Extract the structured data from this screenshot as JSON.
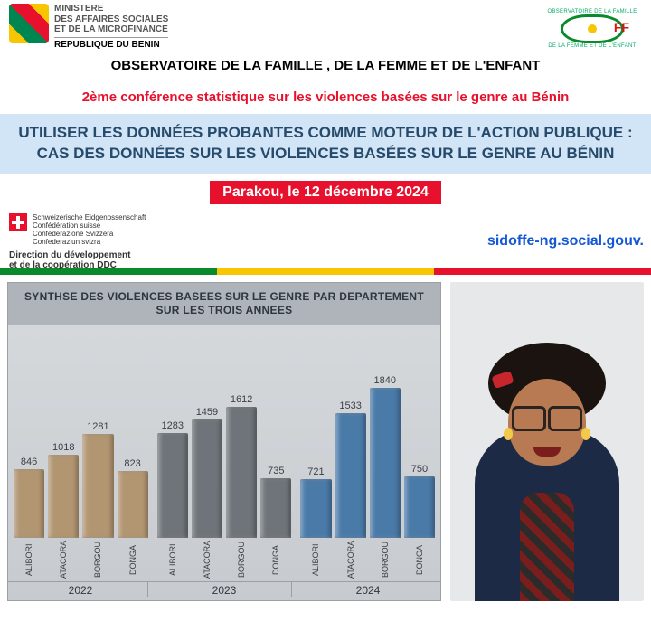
{
  "ministry": {
    "line1": "MINISTERE",
    "line2": "DES AFFAIRES SOCIALES",
    "line3": "ET DE LA MICROFINANCE",
    "republic": "REPUBLIQUE DU BENIN"
  },
  "observatory_arc_top": "OBSERVATOIRE DE LA FAMILLE",
  "observatory_arc_bot": "DE LA FEMME ET DE L'ENFANT",
  "ff_mark": "FF",
  "title_main": "OBSERVATOIRE DE LA FAMILLE , DE LA FEMME ET DE L'ENFANT",
  "subtitle_red": "2ème conférence statistique sur les violences basées sur le genre au Bénin",
  "bluebox_text": "UTILISER LES DONNÉES PROBANTES COMME MOTEUR DE L'ACTION PUBLIQUE : CAS DES DONNÉES SUR LES VIOLENCES BASÉES SUR LE GENRE AU BÉNIN",
  "event_place_date": "Parakou, le 12 décembre 2024",
  "swiss": {
    "l1": "Schweizerische Eidgenossenschaft",
    "l2": "Confédération suisse",
    "l3": "Confederazione Svizzera",
    "l4": "Confederaziun svizra",
    "ddc1": "Direction du développement",
    "ddc2": "et de la coopération DDC"
  },
  "website": "sidoffe-ng.social.gouv.",
  "flag_stripe": {
    "green": "#0a8a2a",
    "yellow": "#f7c600",
    "red": "#e8112d"
  },
  "chart": {
    "title": "SYNTHSE DES VIOLENCES BASEES SUR LE GENRE PAR DEPARTEMENT SUR LES TROIS ANNEES",
    "type": "grouped-bar-3d",
    "y_max": 2000,
    "background": "#cfd3d7",
    "title_bg": "#aeb4b9",
    "value_fontsize": 11,
    "label_fontsize": 9,
    "year_fontsize": 12,
    "years": [
      "2022",
      "2023",
      "2024"
    ],
    "departments": [
      "ALIBORI",
      "ATACORA",
      "BORGOU",
      "DONGA"
    ],
    "colors": {
      "2022": "#b29672",
      "2023": "#6e7479",
      "2024": "#4a7aa8"
    },
    "values": {
      "2022": [
        846,
        1018,
        1281,
        823
      ],
      "2023": [
        1283,
        1459,
        1612,
        735
      ],
      "2024": [
        721,
        1533,
        1840,
        750
      ]
    }
  },
  "portrait_alt": "Photo d'une intervenante"
}
